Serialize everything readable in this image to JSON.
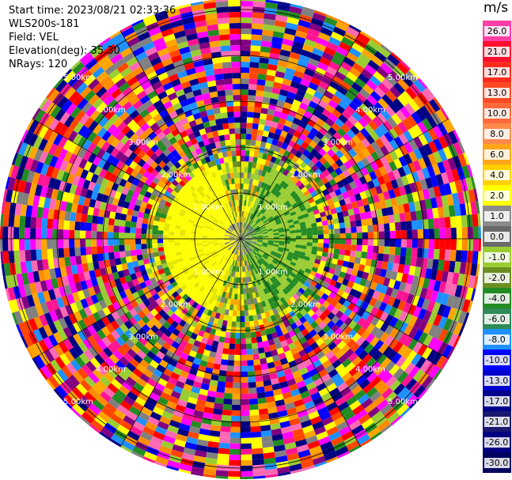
{
  "header": {
    "start_time": "Start time: 2023/08/21 02:33:36",
    "instrument": "WLS200s-181",
    "field": "Field: VEL",
    "elevation": "Elevation(deg): 35.30",
    "nrays": "NRays: 120"
  },
  "colorbar": {
    "unit": "m/s",
    "levels": [
      {
        "label": "26.0",
        "color": "#ff3fa5"
      },
      {
        "label": "21.0",
        "color": "#ff0f2f"
      },
      {
        "label": "17.0",
        "color": "#ff2c1e"
      },
      {
        "label": "13.0",
        "color": "#ff4a24"
      },
      {
        "label": "10.0",
        "color": "#ff6a3c"
      },
      {
        "label": "8.0",
        "color": "#ff8a4c"
      },
      {
        "label": "6.0",
        "color": "#ffa51a"
      },
      {
        "label": "4.0",
        "color": "#ffcf00"
      },
      {
        "label": "2.0",
        "color": "#ffff00"
      },
      {
        "label": "1.0",
        "color": "#8a8a8a"
      },
      {
        "label": "0.0",
        "color": "#696969"
      },
      {
        "label": "-1.0",
        "color": "#9acd32"
      },
      {
        "label": "-2.0",
        "color": "#6b8e23"
      },
      {
        "label": "-4.0",
        "color": "#228b22"
      },
      {
        "label": "-6.0",
        "color": "#2e8b57"
      },
      {
        "label": "-8.0",
        "color": "#1e90ff"
      },
      {
        "label": "-10.0",
        "color": "#0000ff"
      },
      {
        "label": "-13.0",
        "color": "#0000cd"
      },
      {
        "label": "-17.0",
        "color": "#00008b"
      },
      {
        "label": "-21.0",
        "color": "#191970"
      },
      {
        "label": "-26.0",
        "color": "#000080"
      },
      {
        "label": "-30.0",
        "color": "#000060"
      }
    ]
  },
  "range_rings": [
    "1.00km",
    "2.00km",
    "3.00km",
    "4.00km",
    "5.00km"
  ],
  "noise_palette": [
    "#ff1493",
    "#ff00ff",
    "#ff0000",
    "#ffa500",
    "#ffff00",
    "#228b22",
    "#00008b",
    "#0000ff",
    "#808080",
    "#ff69b4",
    "#ff4500",
    "#9acd32",
    "#1e90ff",
    "#800080",
    "#000080",
    "#ff8c00"
  ],
  "center_palette": [
    "#ffff00",
    "#e6e600",
    "#9acd32",
    "#6b8e23",
    "#808080",
    "#228b22",
    "#ffa500"
  ]
}
